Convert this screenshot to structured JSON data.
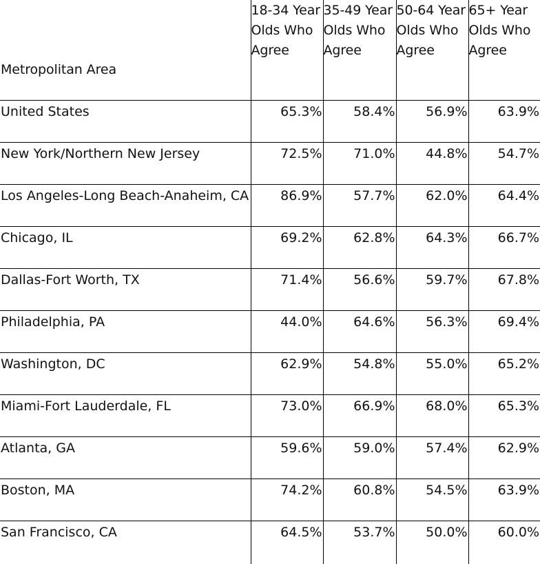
{
  "table": {
    "header": {
      "area": "Metropolitan Area",
      "age_groups": [
        [
          "18-34 Year",
          "Olds Who",
          "Agree"
        ],
        [
          "35-49 Year",
          "Olds Who",
          "Agree"
        ],
        [
          "50-64 Year",
          "Olds Who",
          "Agree"
        ],
        [
          "65+ Year",
          "Olds Who",
          "Agree"
        ]
      ]
    },
    "rows": [
      {
        "area": "United States",
        "values": [
          "65.3%",
          "58.4%",
          "56.9%",
          "63.9%"
        ]
      },
      {
        "area": "New York/Northern New Jersey",
        "values": [
          "72.5%",
          "71.0%",
          "44.8%",
          "54.7%"
        ]
      },
      {
        "area": "Los Angeles-Long Beach-Anaheim, CA",
        "values": [
          "86.9%",
          "57.7%",
          "62.0%",
          "64.4%"
        ]
      },
      {
        "area": "Chicago, IL",
        "values": [
          "69.2%",
          "62.8%",
          "64.3%",
          "66.7%"
        ]
      },
      {
        "area": "Dallas-Fort Worth, TX",
        "values": [
          "71.4%",
          "56.6%",
          "59.7%",
          "67.8%"
        ]
      },
      {
        "area": "Philadelphia, PA",
        "values": [
          "44.0%",
          "64.6%",
          "56.3%",
          "69.4%"
        ]
      },
      {
        "area": "Washington, DC",
        "values": [
          "62.9%",
          "54.8%",
          "55.0%",
          "65.2%"
        ]
      },
      {
        "area": "Miami-Fort Lauderdale, FL",
        "values": [
          "73.0%",
          "66.9%",
          "68.0%",
          "65.3%"
        ]
      },
      {
        "area": "Atlanta, GA",
        "values": [
          "59.6%",
          "59.0%",
          "57.4%",
          "62.9%"
        ]
      },
      {
        "area": "Boston, MA",
        "values": [
          "74.2%",
          "60.8%",
          "54.5%",
          "63.9%"
        ]
      },
      {
        "area": "San Francisco, CA",
        "values": [
          "64.5%",
          "53.7%",
          "50.0%",
          "60.0%"
        ]
      }
    ]
  }
}
